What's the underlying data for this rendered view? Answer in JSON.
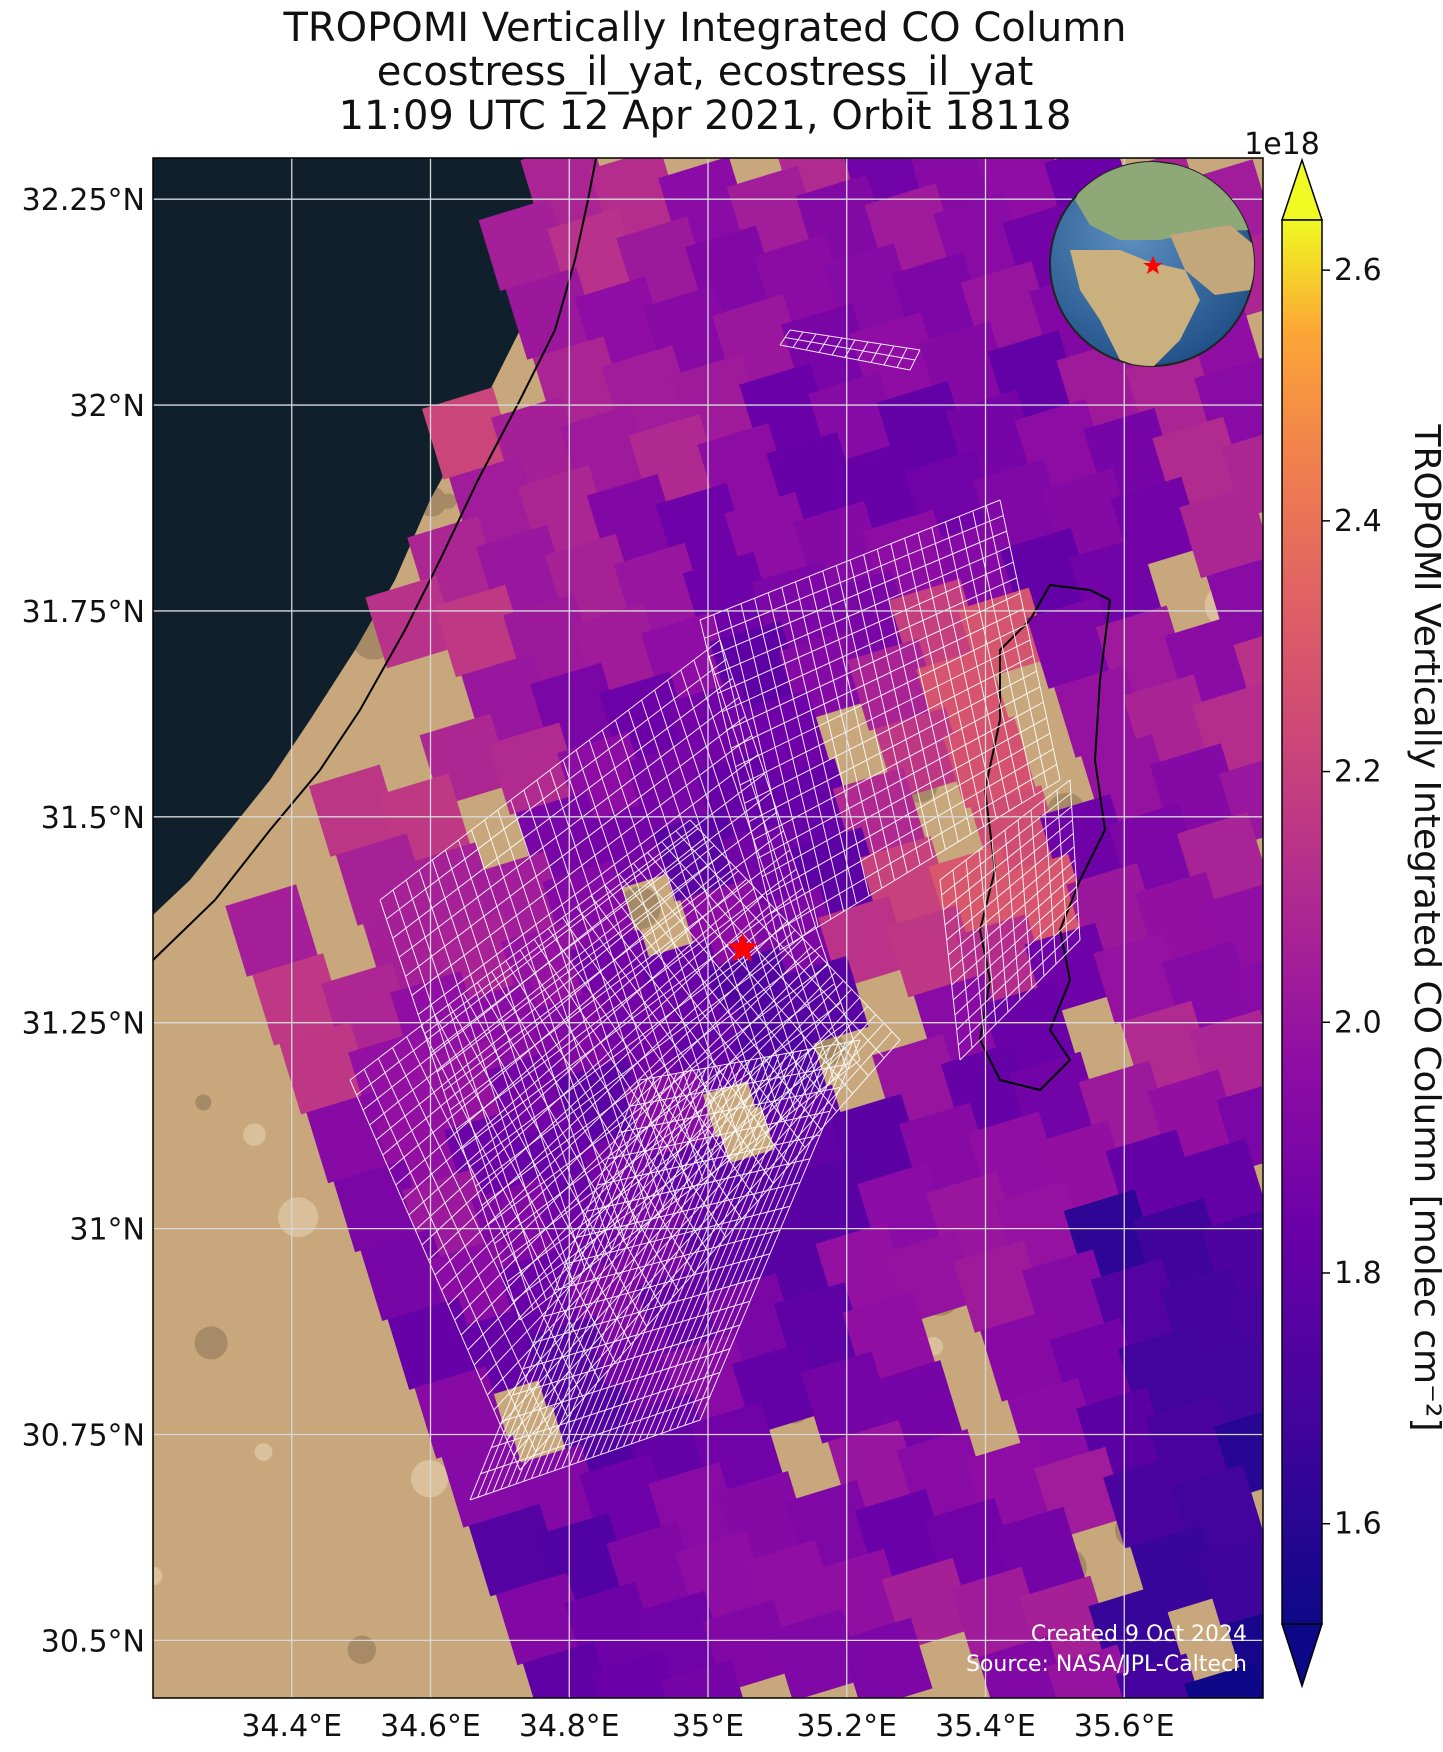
{
  "title": {
    "line1": "TROPOMI Vertically Integrated CO Column",
    "line2": "ecostress_il_yat, ecostress_il_yat",
    "line3": "11:09 UTC 12 Apr 2021, Orbit 18118"
  },
  "map": {
    "lon_range": [
      34.2,
      35.8
    ],
    "lat_range": [
      30.43,
      32.3
    ],
    "lon_ticks": [
      {
        "value": 34.4,
        "label": "34.4°E"
      },
      {
        "value": 34.6,
        "label": "34.6°E"
      },
      {
        "value": 34.8,
        "label": "34.8°E"
      },
      {
        "value": 35.0,
        "label": "35°E"
      },
      {
        "value": 35.2,
        "label": "35.2°E"
      },
      {
        "value": 35.4,
        "label": "35.4°E"
      },
      {
        "value": 35.6,
        "label": "35.6°E"
      }
    ],
    "lat_ticks": [
      {
        "value": 32.25,
        "label": "32.25°N"
      },
      {
        "value": 32.0,
        "label": "32°N"
      },
      {
        "value": 31.75,
        "label": "31.75°N"
      },
      {
        "value": 31.5,
        "label": "31.5°N"
      },
      {
        "value": 31.25,
        "label": "31.25°N"
      },
      {
        "value": 31.0,
        "label": "31°N"
      },
      {
        "value": 30.75,
        "label": "30.75°N"
      },
      {
        "value": 30.5,
        "label": "30.5°N"
      }
    ],
    "site_marker": {
      "lon": 35.05,
      "lat": 31.34,
      "color": "#ff0000"
    },
    "grid": true,
    "inset": "globe, top-right"
  },
  "colorbar": {
    "label": "TROPOMI Vertically Integrated CO Column [molec cm⁻²]",
    "multiplier": "1e18",
    "min": 1.52,
    "max": 2.64,
    "ticks": [
      {
        "value": 1.6,
        "label": "1.6"
      },
      {
        "value": 1.8,
        "label": "1.8"
      },
      {
        "value": 2.0,
        "label": "2.0"
      },
      {
        "value": 2.2,
        "label": "2.2"
      },
      {
        "value": 2.4,
        "label": "2.4"
      },
      {
        "value": 2.6,
        "label": "2.6"
      }
    ],
    "colormap": "plasma"
  },
  "credits": {
    "created": "Created 9 Oct 2024",
    "source": "Source: NASA/JPL-Caltech"
  },
  "colors": {
    "sea": "#0f202c",
    "land": "#c9a77c",
    "grid": "#d8d8d8",
    "footprint": "#ffffff",
    "marker": "#ff0000"
  }
}
